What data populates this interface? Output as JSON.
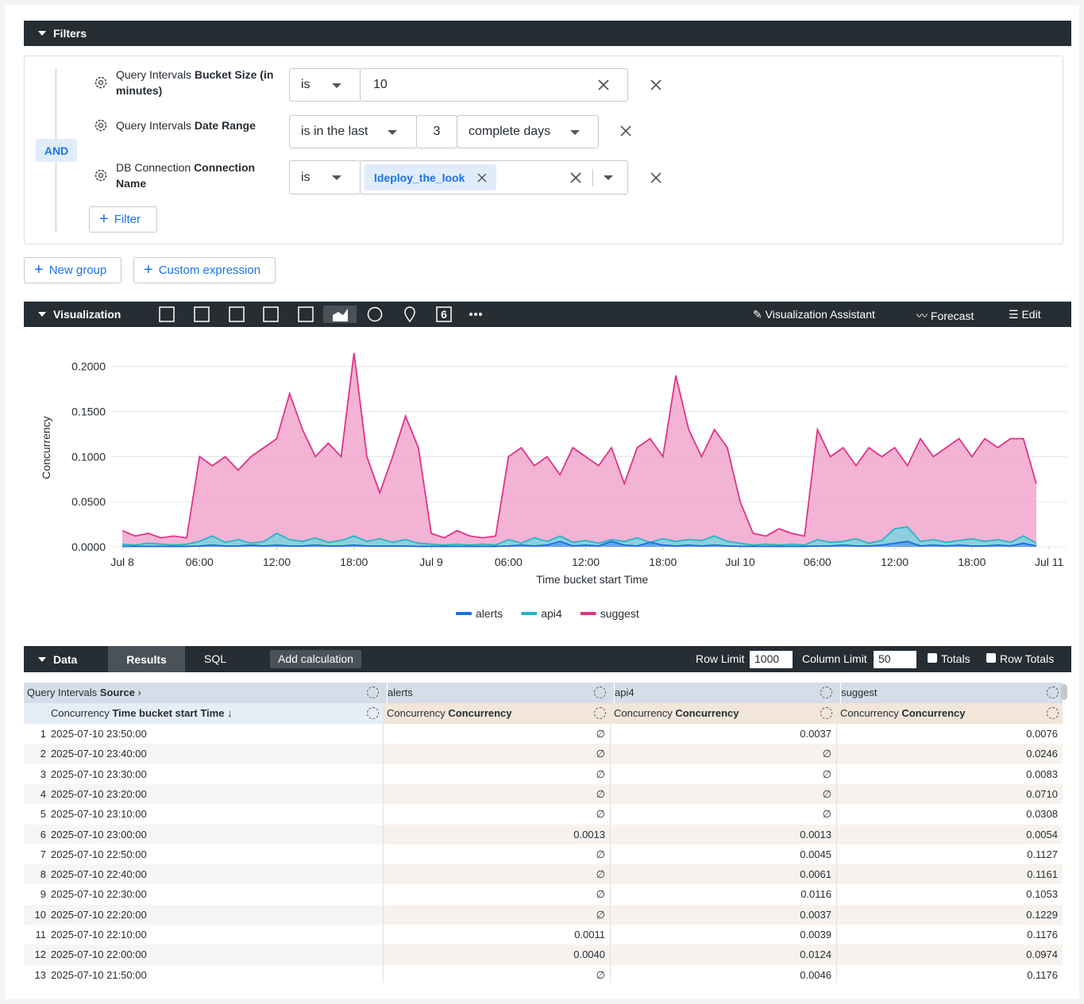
{
  "filters": {
    "title": "Filters",
    "logic": "AND",
    "rows": [
      {
        "field_prefix": "Query Intervals",
        "field": "Bucket Size (in minutes)",
        "operator": "is",
        "value": "10"
      },
      {
        "field_prefix": "Query Intervals",
        "field": "Date Range",
        "operator": "is in the last",
        "value": "3",
        "unit": "complete days"
      },
      {
        "field_prefix": "DB Connection",
        "field": "Connection Name",
        "operator": "is",
        "chip": "ldeploy_the_look"
      }
    ],
    "add_filter": "Filter",
    "new_group": "New group",
    "custom_expression": "Custom expression"
  },
  "visualization": {
    "title": "Visualization",
    "tab_number": "6",
    "assistant": "Visualization Assistant",
    "forecast": "Forecast",
    "edit": "Edit"
  },
  "chart_data": {
    "type": "area",
    "x_label": "Time bucket start Time",
    "y_label": "Concurrency",
    "legend": "bottom",
    "grid": true,
    "xlim": [
      0,
      73
    ],
    "ylim": [
      0,
      0.22
    ],
    "xticks": [
      {
        "value": 0,
        "label": "Jul 8"
      },
      {
        "value": 6,
        "label": "06:00"
      },
      {
        "value": 12,
        "label": "12:00"
      },
      {
        "value": 18,
        "label": "18:00"
      },
      {
        "value": 24,
        "label": "Jul 9"
      },
      {
        "value": 30,
        "label": "06:00"
      },
      {
        "value": 36,
        "label": "12:00"
      },
      {
        "value": 42,
        "label": "18:00"
      },
      {
        "value": 48,
        "label": "Jul 10"
      },
      {
        "value": 54,
        "label": "06:00"
      },
      {
        "value": 60,
        "label": "12:00"
      },
      {
        "value": 66,
        "label": "18:00"
      },
      {
        "value": 72,
        "label": "Jul 11"
      }
    ],
    "yticks": [
      {
        "value": 0,
        "label": "0.0000"
      },
      {
        "value": 0.05,
        "label": "0.0500"
      },
      {
        "value": 0.1,
        "label": "0.1000"
      },
      {
        "value": 0.15,
        "label": "0.1500"
      },
      {
        "value": 0.2,
        "label": "0.2000"
      }
    ],
    "x": [
      0,
      1,
      2,
      3,
      4,
      5,
      6,
      7,
      8,
      9,
      10,
      11,
      12,
      13,
      14,
      15,
      16,
      17,
      18,
      19,
      20,
      21,
      22,
      23,
      24,
      25,
      26,
      27,
      28,
      29,
      30,
      31,
      32,
      33,
      34,
      35,
      36,
      37,
      38,
      39,
      40,
      41,
      42,
      43,
      44,
      45,
      46,
      47,
      48,
      49,
      50,
      51,
      52,
      53,
      54,
      55,
      56,
      57,
      58,
      59,
      60,
      61,
      62,
      63,
      64,
      65,
      66,
      67,
      68,
      69,
      70,
      71
    ],
    "series": [
      {
        "name": "suggest",
        "color": "#e0338a",
        "fill": "#f0a6cd",
        "values": [
          0.018,
          0.012,
          0.015,
          0.01,
          0.012,
          0.01,
          0.1,
          0.09,
          0.1,
          0.085,
          0.1,
          0.11,
          0.12,
          0.17,
          0.13,
          0.1,
          0.115,
          0.1,
          0.215,
          0.1,
          0.06,
          0.1,
          0.145,
          0.11,
          0.015,
          0.01,
          0.018,
          0.012,
          0.01,
          0.012,
          0.1,
          0.11,
          0.09,
          0.1,
          0.08,
          0.11,
          0.1,
          0.09,
          0.11,
          0.07,
          0.11,
          0.12,
          0.1,
          0.19,
          0.13,
          0.1,
          0.13,
          0.11,
          0.05,
          0.015,
          0.012,
          0.02,
          0.015,
          0.012,
          0.13,
          0.1,
          0.11,
          0.09,
          0.11,
          0.1,
          0.11,
          0.09,
          0.12,
          0.1,
          0.11,
          0.12,
          0.1,
          0.12,
          0.11,
          0.12,
          0.12,
          0.07
        ]
      },
      {
        "name": "api4",
        "color": "#26b4c8",
        "fill": "#7dd3df",
        "values": [
          0.003,
          0.002,
          0.004,
          0.003,
          0.002,
          0.003,
          0.006,
          0.012,
          0.005,
          0.008,
          0.004,
          0.006,
          0.015,
          0.008,
          0.006,
          0.01,
          0.005,
          0.007,
          0.012,
          0.006,
          0.009,
          0.005,
          0.008,
          0.004,
          0.003,
          0.002,
          0.003,
          0.002,
          0.003,
          0.002,
          0.008,
          0.004,
          0.01,
          0.006,
          0.012,
          0.005,
          0.007,
          0.004,
          0.008,
          0.006,
          0.01,
          0.005,
          0.009,
          0.006,
          0.008,
          0.007,
          0.012,
          0.006,
          0.004,
          0.002,
          0.003,
          0.002,
          0.003,
          0.002,
          0.008,
          0.005,
          0.006,
          0.009,
          0.004,
          0.007,
          0.02,
          0.022,
          0.006,
          0.008,
          0.005,
          0.007,
          0.009,
          0.006,
          0.008,
          0.005,
          0.012,
          0.004
        ]
      },
      {
        "name": "alerts",
        "color": "#1a6fe0",
        "fill": "#5f9bea",
        "values": [
          0.0005,
          0.0005,
          0.0005,
          0.0005,
          0.0005,
          0.0005,
          0.001,
          0.002,
          0.001,
          0.001,
          0.002,
          0.001,
          0.002,
          0.001,
          0.001,
          0.002,
          0.001,
          0.001,
          0.002,
          0.001,
          0.001,
          0.001,
          0.001,
          0.0005,
          0.0005,
          0.0005,
          0.0005,
          0.0005,
          0.0005,
          0.0005,
          0.001,
          0.002,
          0.001,
          0.002,
          0.006,
          0.001,
          0.002,
          0.001,
          0.006,
          0.002,
          0.001,
          0.005,
          0.002,
          0.001,
          0.002,
          0.001,
          0.002,
          0.001,
          0.0005,
          0.0005,
          0.0005,
          0.0005,
          0.0005,
          0.0005,
          0.001,
          0.001,
          0.002,
          0.001,
          0.001,
          0.002,
          0.004,
          0.006,
          0.001,
          0.002,
          0.001,
          0.002,
          0.001,
          0.001,
          0.002,
          0.001,
          0.004,
          0.001
        ]
      }
    ]
  },
  "data_panel": {
    "title": "Data",
    "tabs": [
      "Results",
      "SQL"
    ],
    "add_calculation": "Add calculation",
    "row_limit_label": "Row Limit",
    "row_limit": "1000",
    "column_limit_label": "Column Limit",
    "column_limit": "50",
    "totals": "Totals",
    "row_totals": "Row Totals"
  },
  "table": {
    "group_headers": [
      {
        "prefix": "Query Intervals",
        "name": "Source"
      },
      {
        "name": "alerts"
      },
      {
        "name": "api4"
      },
      {
        "name": "suggest"
      }
    ],
    "columns": [
      {
        "prefix": "Concurrency",
        "name": "Time bucket start Time"
      },
      {
        "prefix": "Concurrency",
        "name": "Concurrency"
      },
      {
        "prefix": "Concurrency",
        "name": "Concurrency"
      },
      {
        "prefix": "Concurrency",
        "name": "Concurrency"
      }
    ],
    "rows": [
      [
        "1",
        "2025-07-10 23:50:00",
        "∅",
        "0.0037",
        "0.0076"
      ],
      [
        "2",
        "2025-07-10 23:40:00",
        "∅",
        "∅",
        "0.0246"
      ],
      [
        "3",
        "2025-07-10 23:30:00",
        "∅",
        "∅",
        "0.0083"
      ],
      [
        "4",
        "2025-07-10 23:20:00",
        "∅",
        "∅",
        "0.0710"
      ],
      [
        "5",
        "2025-07-10 23:10:00",
        "∅",
        "∅",
        "0.0308"
      ],
      [
        "6",
        "2025-07-10 23:00:00",
        "0.0013",
        "0.0013",
        "0.0054"
      ],
      [
        "7",
        "2025-07-10 22:50:00",
        "∅",
        "0.0045",
        "0.1127"
      ],
      [
        "8",
        "2025-07-10 22:40:00",
        "∅",
        "0.0061",
        "0.1161"
      ],
      [
        "9",
        "2025-07-10 22:30:00",
        "∅",
        "0.0116",
        "0.1053"
      ],
      [
        "10",
        "2025-07-10 22:20:00",
        "∅",
        "0.0037",
        "0.1229"
      ],
      [
        "11",
        "2025-07-10 22:10:00",
        "0.0011",
        "0.0039",
        "0.1176"
      ],
      [
        "12",
        "2025-07-10 22:00:00",
        "0.0040",
        "0.0124",
        "0.0974"
      ],
      [
        "13",
        "2025-07-10 21:50:00",
        "∅",
        "0.0046",
        "0.1176"
      ]
    ]
  }
}
